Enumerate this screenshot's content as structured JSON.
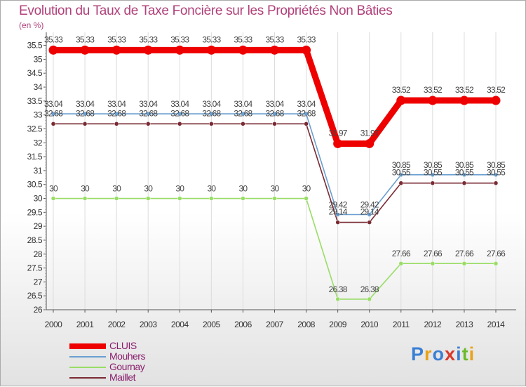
{
  "header": {
    "title": "Evolution du Taux de Taxe Foncière sur les Propriétés Non Bâties",
    "unit_label": "(en %)"
  },
  "logo": {
    "text": "Proxiti"
  },
  "chart_data": {
    "type": "line",
    "title": "Evolution du Taux de Taxe Foncière sur les Propriétés Non Bâties",
    "ylabel": "(en %)",
    "xlabel": "",
    "ylim": [
      26,
      35.5
    ],
    "y_ticks": [
      "26",
      "26.5",
      "27",
      "27.5",
      "28",
      "28.5",
      "29",
      "29.5",
      "30",
      "30.5",
      "31",
      "31.5",
      "32",
      "32.5",
      "33",
      "33.5",
      "34",
      "34.5",
      "35",
      "35.5"
    ],
    "categories": [
      "2000",
      "2001",
      "2002",
      "2003",
      "2004",
      "2005",
      "2006",
      "2007",
      "2008",
      "2009",
      "2010",
      "2011",
      "2012",
      "2013",
      "2014"
    ],
    "series": [
      {
        "name": "CLUIS",
        "color": "#ee0000",
        "values": [
          35.33,
          35.33,
          35.33,
          35.33,
          35.33,
          35.33,
          35.33,
          35.33,
          35.33,
          31.97,
          31.97,
          33.52,
          33.52,
          33.52,
          33.52
        ],
        "labels": [
          "35.33",
          "35.33",
          "35.33",
          "35.33",
          "35.33",
          "35.33",
          "35.33",
          "35.33",
          "35.33",
          "31.97",
          "31.97",
          "33.52",
          "33.52",
          "33.52",
          "33.52"
        ]
      },
      {
        "name": "Mouhers",
        "color": "#6a9fd0",
        "values": [
          33.04,
          33.04,
          33.04,
          33.04,
          33.04,
          33.04,
          33.04,
          33.04,
          33.04,
          29.42,
          29.42,
          30.85,
          30.85,
          30.85,
          30.85
        ],
        "labels": [
          "33.04",
          "33.04",
          "33.04",
          "33.04",
          "33.04",
          "33.04",
          "33.04",
          "33.04",
          "33.04",
          "29.42",
          "29.42",
          "30.85",
          "30.85",
          "30.85",
          "30.85"
        ]
      },
      {
        "name": "Gournay",
        "color": "#99dd66",
        "values": [
          30,
          30,
          30,
          30,
          30,
          30,
          30,
          30,
          30,
          26.38,
          26.38,
          27.66,
          27.66,
          27.66,
          27.66
        ],
        "labels": [
          "30",
          "30",
          "30",
          "30",
          "30",
          "30",
          "30",
          "30",
          "30",
          "26.38",
          "26.38",
          "27.66",
          "27.66",
          "27.66",
          "27.66"
        ]
      },
      {
        "name": "Maillet",
        "color": "#7a2a33",
        "values": [
          32.68,
          32.68,
          32.68,
          32.68,
          32.68,
          32.68,
          32.68,
          32.68,
          32.68,
          29.14,
          29.14,
          30.55,
          30.55,
          30.55,
          30.55
        ],
        "labels": [
          "32.68",
          "32.68",
          "32.68",
          "32.68",
          "32.68",
          "32.68",
          "32.68",
          "32.68",
          "32.68",
          "29.14",
          "29.14",
          "30.55",
          "30.55",
          "30.55",
          "30.55"
        ]
      }
    ],
    "legend_position": "bottom-left"
  }
}
